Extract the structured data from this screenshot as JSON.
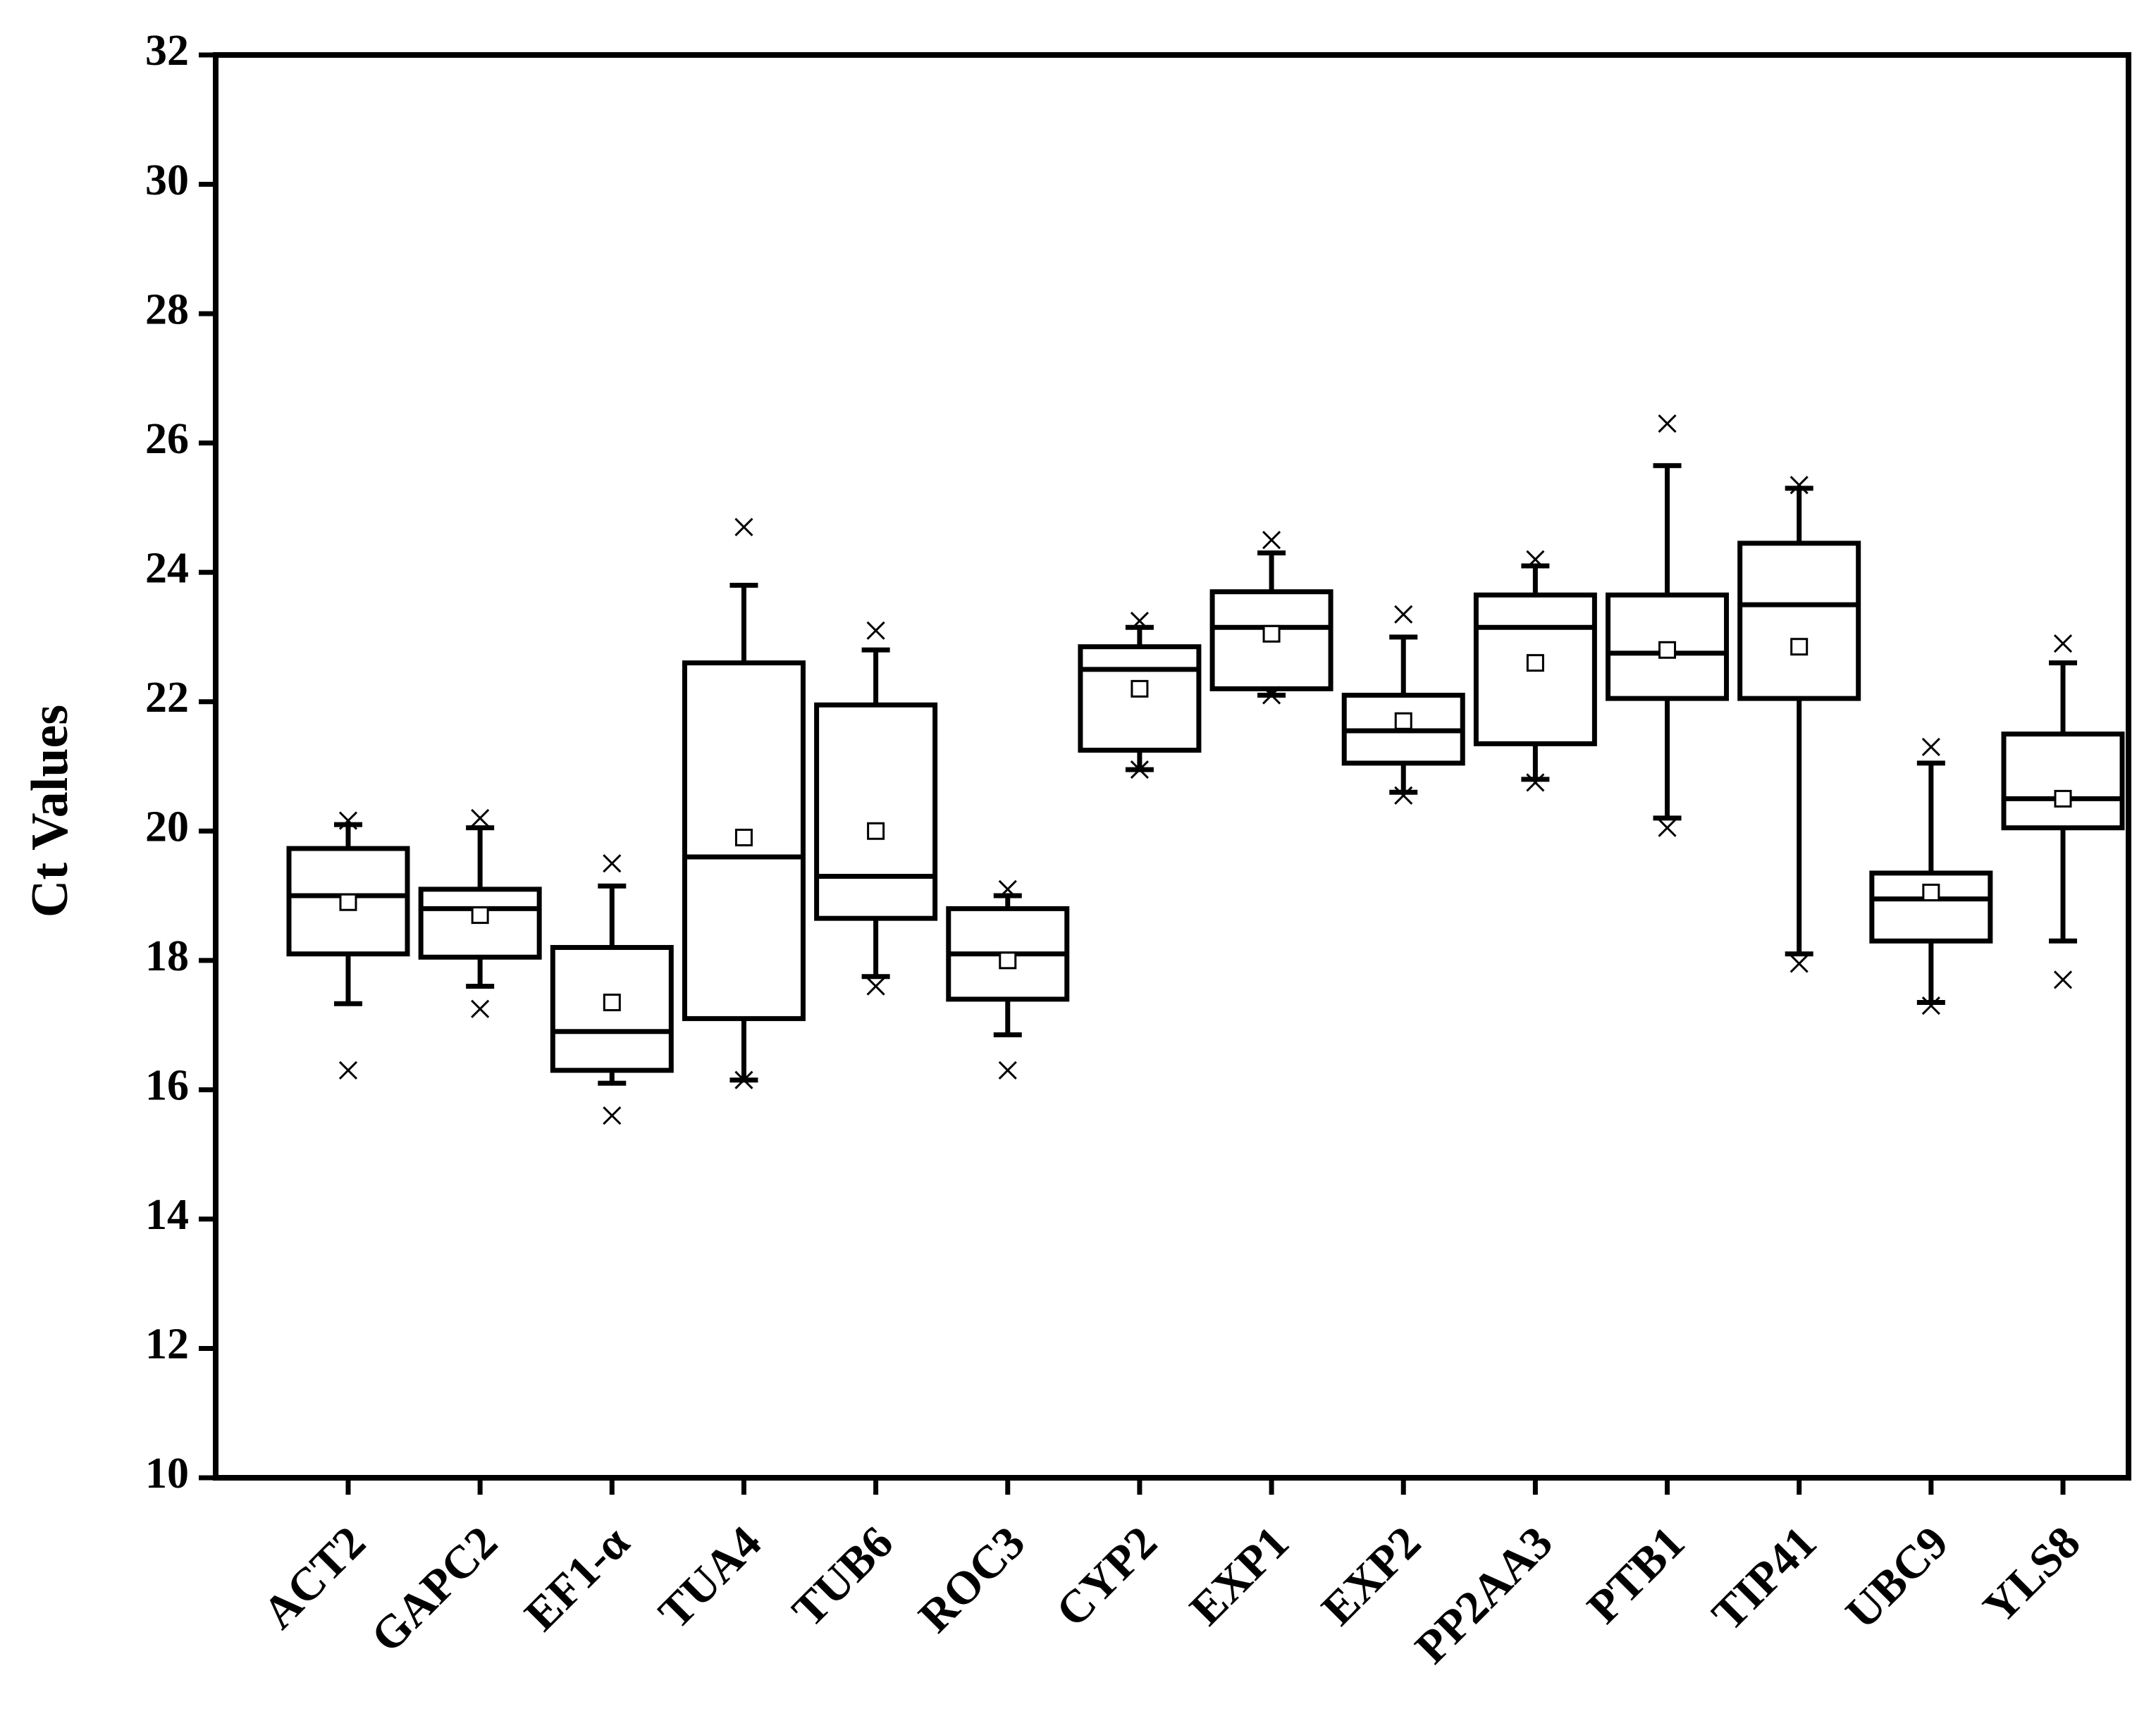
{
  "chart_data": {
    "type": "box",
    "y_label": "Ct Values",
    "categories": [
      "ACT2",
      "GAPC2",
      "EF1-α",
      "TUA4",
      "TUB6",
      "ROC3",
      "CYP2",
      "EXP1",
      "EXP2",
      "PP2AA3",
      "PTB1",
      "TIP41",
      "UBC9",
      "YLS8"
    ],
    "whisker_low": [
      17.33,
      17.6,
      16.1,
      16.15,
      17.75,
      16.85,
      20.95,
      22.1,
      20.6,
      20.8,
      20.2,
      18.1,
      17.35,
      18.3
    ],
    "q1": [
      18.1,
      18.05,
      16.3,
      17.1,
      18.65,
      17.4,
      21.25,
      22.2,
      21.05,
      21.35,
      22.05,
      22.05,
      18.3,
      20.05
    ],
    "median": [
      19.0,
      18.8,
      16.9,
      19.6,
      19.3,
      18.1,
      22.5,
      23.15,
      21.55,
      23.15,
      22.75,
      23.5,
      18.95,
      20.5
    ],
    "q3": [
      19.73,
      19.1,
      18.2,
      22.6,
      21.95,
      18.8,
      22.85,
      23.7,
      22.1,
      23.65,
      23.65,
      24.45,
      19.35,
      21.5
    ],
    "whisker_high": [
      20.1,
      20.05,
      19.15,
      23.8,
      22.8,
      19.0,
      23.15,
      24.3,
      23.0,
      24.1,
      25.65,
      25.3,
      21.05,
      22.6
    ],
    "mean": [
      18.9,
      18.7,
      17.35,
      19.9,
      20.0,
      18.0,
      22.2,
      23.05,
      21.7,
      22.6,
      22.8,
      22.85,
      19.05,
      20.5
    ],
    "min": [
      16.3,
      17.25,
      15.6,
      16.15,
      17.6,
      16.3,
      20.95,
      22.1,
      20.55,
      20.75,
      20.05,
      17.95,
      17.3,
      17.7
    ],
    "max": [
      20.16,
      20.2,
      19.5,
      24.7,
      23.1,
      19.1,
      23.25,
      24.5,
      23.35,
      24.2,
      26.3,
      25.35,
      21.3,
      22.9
    ],
    "color": "#000000",
    "ylim": [
      10,
      32
    ],
    "yticks": [
      10,
      12,
      14,
      16,
      18,
      20,
      22,
      24,
      26,
      28,
      30,
      32
    ],
    "grid": false
  }
}
